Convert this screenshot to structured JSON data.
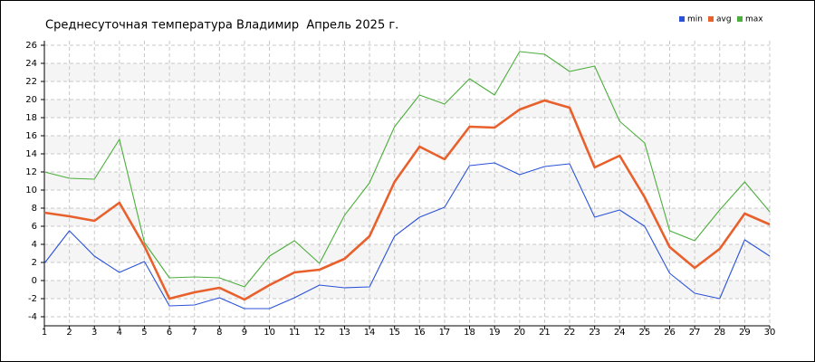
{
  "chart_data": {
    "type": "line",
    "title": "Среднесуточная температура Владимир  Апрель 2025 г.",
    "x": [
      1,
      2,
      3,
      4,
      5,
      6,
      7,
      8,
      9,
      10,
      11,
      12,
      13,
      14,
      15,
      16,
      17,
      18,
      19,
      20,
      21,
      22,
      23,
      24,
      25,
      26,
      27,
      28,
      29,
      30
    ],
    "xlim": [
      1,
      30
    ],
    "xticks": [
      1,
      2,
      3,
      4,
      5,
      6,
      7,
      8,
      9,
      10,
      11,
      12,
      13,
      14,
      15,
      16,
      17,
      18,
      19,
      20,
      21,
      22,
      23,
      24,
      25,
      26,
      27,
      28,
      29,
      30
    ],
    "ylim": [
      -5,
      26.5
    ],
    "yticks": [
      -4,
      -2,
      0,
      2,
      4,
      6,
      8,
      10,
      12,
      14,
      16,
      18,
      20,
      22,
      24,
      26
    ],
    "grid": true,
    "legend": "top-right",
    "series": [
      {
        "name": "min",
        "color": "#2a52d8",
        "values": [
          1.9,
          5.5,
          2.7,
          0.9,
          2.1,
          -2.8,
          -2.7,
          -1.9,
          -3.1,
          -3.1,
          -1.9,
          -0.5,
          -0.8,
          -0.7,
          4.9,
          7.0,
          8.1,
          12.7,
          13.0,
          11.7,
          12.6,
          12.9,
          7.0,
          7.8,
          6.0,
          0.8,
          -1.4,
          -2.0,
          4.5,
          2.7
        ]
      },
      {
        "name": "avg",
        "color": "#e8602c",
        "values": [
          7.5,
          7.1,
          6.6,
          8.6,
          3.8,
          -2.0,
          -1.3,
          -0.8,
          -2.1,
          -0.5,
          0.9,
          1.2,
          2.4,
          4.9,
          10.9,
          14.8,
          13.4,
          17.0,
          16.9,
          18.9,
          19.9,
          19.1,
          12.5,
          13.8,
          9.2,
          3.7,
          1.4,
          3.5,
          7.4,
          6.2
        ]
      },
      {
        "name": "max",
        "color": "#4cae3c",
        "values": [
          12.0,
          11.3,
          11.2,
          15.6,
          4.2,
          0.3,
          0.4,
          0.3,
          -0.7,
          2.7,
          4.4,
          1.9,
          7.2,
          10.8,
          17.0,
          20.5,
          19.5,
          22.3,
          20.5,
          25.3,
          25.0,
          23.1,
          23.7,
          17.6,
          15.2,
          5.5,
          4.4,
          7.8,
          10.9,
          7.6
        ]
      }
    ]
  }
}
